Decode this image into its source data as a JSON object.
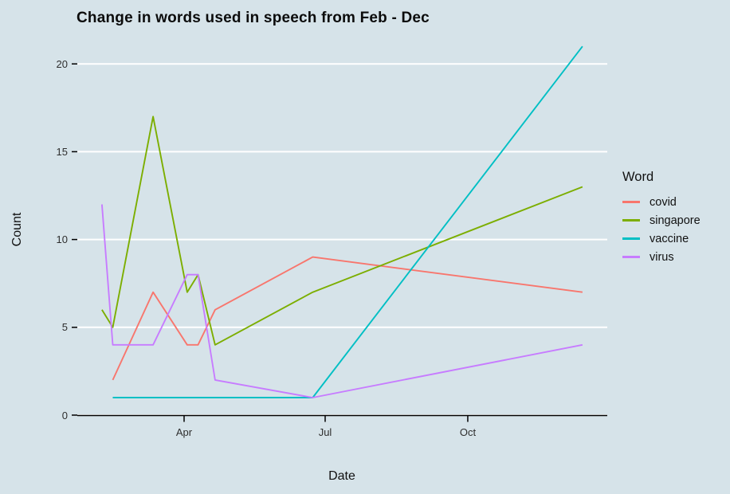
{
  "title": "Change in words used in speech from Feb - Dec",
  "axes": {
    "x_label": "Date",
    "y_label": "Count",
    "x_tick_labels": [
      "Apr",
      "Jul",
      "Oct"
    ],
    "y_tick_labels": [
      "0",
      "5",
      "10",
      "15",
      "20"
    ]
  },
  "legend": {
    "title": "Word",
    "items": [
      {
        "label": "covid",
        "color": "#F8766D"
      },
      {
        "label": "singapore",
        "color": "#7CAE00"
      },
      {
        "label": "vaccine",
        "color": "#00BFC4"
      },
      {
        "label": "virus",
        "color": "#C77CFF"
      }
    ]
  },
  "colors": {
    "background": "#d6e3e9",
    "gridline": "#ffffff",
    "axis_line": "#000000",
    "text": "#111111"
  },
  "chart_data": {
    "type": "line",
    "title": "Change in words used in speech from Feb - Dec",
    "xlabel": "Date",
    "ylabel": "Count",
    "grid": "horizontal major gridlines only, white on light blue-gray panel",
    "legend_title": "Word",
    "legend_position": "right",
    "y_axis": {
      "ticks": [
        0,
        5,
        10,
        15,
        20
      ],
      "range": [
        0,
        21.4
      ]
    },
    "x_axis": {
      "tick_labels": [
        "Apr",
        "Jul",
        "Oct"
      ],
      "tick_days_of_year": [
        92,
        183,
        275
      ],
      "domain_days_of_year": [
        22,
        366
      ],
      "note": "x is a 2020 date axis; point dates estimated from pixel positions"
    },
    "x_dates_estimated": [
      "Feb 8",
      "Feb 15",
      "Mar 12",
      "Apr 3",
      "Apr 10",
      "Apr 21",
      "Jun 23",
      "Dec 14"
    ],
    "series": [
      {
        "name": "covid",
        "color": "#F8766D",
        "points": [
          [
            46,
            2
          ],
          [
            72,
            7
          ],
          [
            94,
            4
          ],
          [
            101,
            4
          ],
          [
            112,
            6
          ],
          [
            175,
            9
          ],
          [
            349,
            7
          ]
        ]
      },
      {
        "name": "singapore",
        "color": "#7CAE00",
        "points": [
          [
            39,
            6
          ],
          [
            46,
            5
          ],
          [
            72,
            17
          ],
          [
            94,
            7
          ],
          [
            101,
            8
          ],
          [
            112,
            4
          ],
          [
            175,
            7
          ],
          [
            349,
            13
          ]
        ]
      },
      {
        "name": "vaccine",
        "color": "#00BFC4",
        "points": [
          [
            46,
            1
          ],
          [
            72,
            1
          ],
          [
            94,
            1
          ],
          [
            101,
            1
          ],
          [
            112,
            1
          ],
          [
            175,
            1
          ],
          [
            349,
            21
          ]
        ]
      },
      {
        "name": "virus",
        "color": "#C77CFF",
        "points": [
          [
            39,
            12
          ],
          [
            46,
            4
          ],
          [
            72,
            4
          ],
          [
            94,
            8
          ],
          [
            101,
            8
          ],
          [
            112,
            2
          ],
          [
            175,
            1
          ],
          [
            349,
            4
          ]
        ]
      }
    ]
  }
}
